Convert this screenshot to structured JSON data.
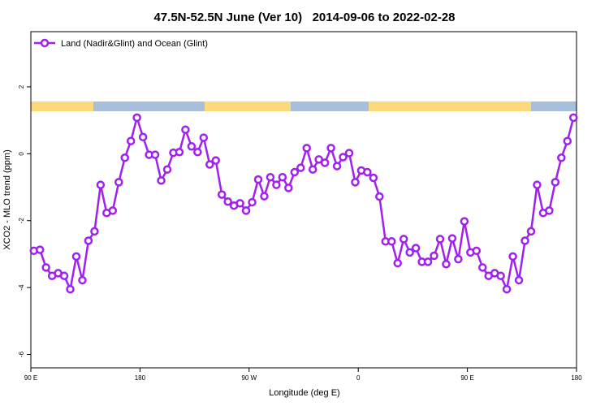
{
  "chart_data": {
    "type": "line",
    "title": "47.5N-52.5N June (Ver 10)   2014-09-06 to 2022-02-28",
    "x_label": "Longitude (deg E)",
    "y_label": "XCO2 - MLO trend (ppm)",
    "xlim": [
      90,
      540
    ],
    "ylim": [
      -6.4,
      3.65
    ],
    "xticks": [
      {
        "value": 90,
        "label": "90 E"
      },
      {
        "value": 180,
        "label": "180"
      },
      {
        "value": 270,
        "label": "90 W"
      },
      {
        "value": 360,
        "label": "0"
      },
      {
        "value": 450,
        "label": "90 E"
      },
      {
        "value": 540,
        "label": "180"
      }
    ],
    "yticks": [
      -6,
      -4,
      -2,
      0,
      2
    ],
    "legend_position": "top-left",
    "x": [
      92.5,
      97.5,
      102.5,
      107.5,
      112.5,
      117.5,
      122.5,
      127.5,
      132.5,
      137.5,
      142.5,
      147.5,
      152.5,
      157.5,
      162.5,
      167.5,
      172.5,
      177.5,
      182.5,
      187.5,
      192.5,
      197.5,
      202.5,
      207.5,
      212.5,
      217.5,
      222.5,
      227.5,
      232.5,
      237.5,
      242.5,
      247.5,
      252.5,
      257.5,
      262.5,
      267.5,
      272.5,
      277.5,
      282.5,
      287.5,
      292.5,
      297.5,
      302.5,
      307.5,
      312.5,
      317.5,
      322.5,
      327.5,
      332.5,
      337.5,
      342.5,
      347.5,
      352.5,
      357.5,
      362.5,
      367.5,
      372.5,
      377.5,
      382.5,
      387.5,
      392.5,
      397.5,
      402.5,
      407.5,
      412.5,
      417.5,
      422.5,
      427.5,
      432.5,
      437.5,
      442.5,
      447.5,
      452.5,
      457.5,
      462.5,
      467.5,
      472.5,
      477.5,
      482.5,
      487.5,
      492.5,
      497.5,
      502.5,
      507.5,
      512.5,
      517.5,
      522.5,
      527.5,
      532.5,
      537.5
    ],
    "series": [
      {
        "name": "Land (Nadir&Glint) and Ocean (Glint)",
        "color": "#a020f0",
        "values": [
          -2.9,
          -2.87,
          -3.4,
          -3.65,
          -3.57,
          -3.65,
          -4.05,
          -3.07,
          -3.78,
          -2.6,
          -2.32,
          -0.93,
          -1.77,
          -1.7,
          -0.85,
          -0.12,
          0.38,
          1.08,
          0.5,
          -0.03,
          -0.03,
          -0.8,
          -0.47,
          0.03,
          0.05,
          0.72,
          0.22,
          0.05,
          0.48,
          -0.32,
          -0.2,
          -1.22,
          -1.43,
          -1.55,
          -1.48,
          -1.7,
          -1.45,
          -0.77,
          -1.27,
          -0.7,
          -0.93,
          -0.7,
          -1.02,
          -0.55,
          -0.42,
          0.17,
          -0.47,
          -0.17,
          -0.27,
          0.17,
          -0.37,
          -0.1,
          0.02,
          -0.85,
          -0.5,
          -0.55,
          -0.72,
          -1.28,
          -2.62,
          -2.62,
          -3.27,
          -2.55,
          -2.95,
          -2.82,
          -3.23,
          -3.23,
          -3.05,
          -2.55,
          -3.3,
          -2.53,
          -3.15,
          -2.02,
          -2.95,
          -2.9,
          -3.4,
          -3.65,
          -3.57,
          -3.65,
          -4.05,
          -3.07,
          -3.78,
          -2.6,
          -2.32,
          -0.93,
          -1.77,
          -1.7,
          -0.85,
          -0.12,
          0.38,
          1.08
        ]
      }
    ]
  }
}
